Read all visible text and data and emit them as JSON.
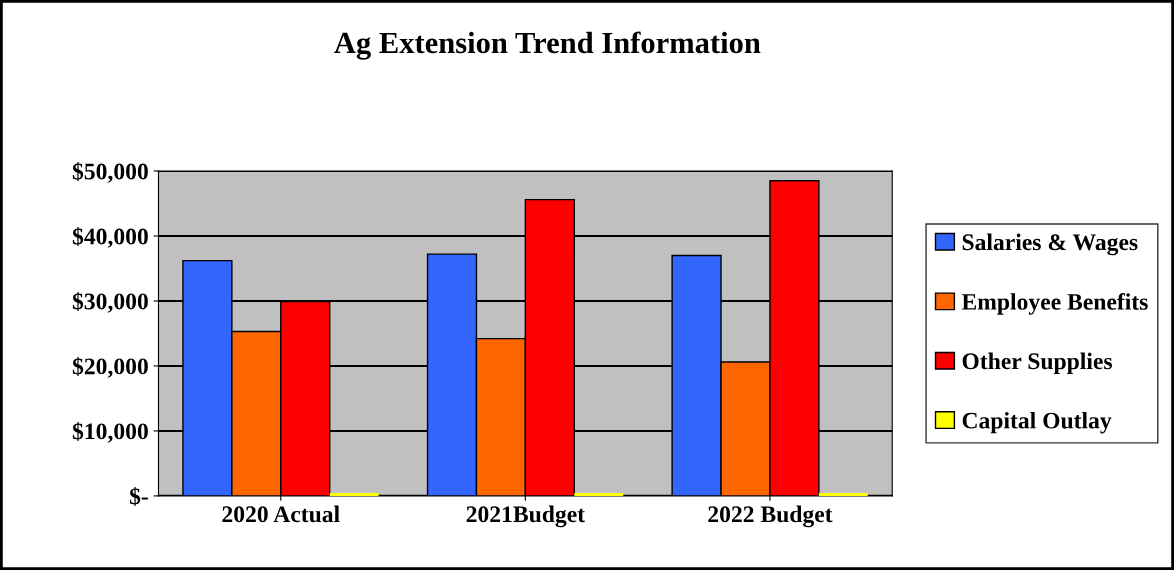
{
  "chart_data": {
    "type": "bar",
    "title": "Ag Extension Trend Information",
    "categories": [
      "2020 Actual",
      "2021Budget",
      "2022 Budget"
    ],
    "series": [
      {
        "name": "Salaries & Wages",
        "color": "#3366ff",
        "values": [
          36200,
          37200,
          37000
        ]
      },
      {
        "name": "Employee Benefits",
        "color": "#ff6600",
        "values": [
          25300,
          24200,
          20600
        ]
      },
      {
        "name": "Other Supplies",
        "color": "#ff0000",
        "values": [
          29900,
          45600,
          48500
        ]
      },
      {
        "name": "Capital Outlay",
        "color": "#ffff00",
        "values": [
          0,
          0,
          0
        ]
      }
    ],
    "ylim": [
      0,
      50000
    ],
    "yticks": [
      {
        "value": 0,
        "label": "$-"
      },
      {
        "value": 10000,
        "label": "$10,000"
      },
      {
        "value": 20000,
        "label": "$20,000"
      },
      {
        "value": 30000,
        "label": "$30,000"
      },
      {
        "value": 40000,
        "label": "$40,000"
      },
      {
        "value": 50000,
        "label": "$50,000"
      }
    ],
    "grid": "y",
    "legend": "right"
  }
}
